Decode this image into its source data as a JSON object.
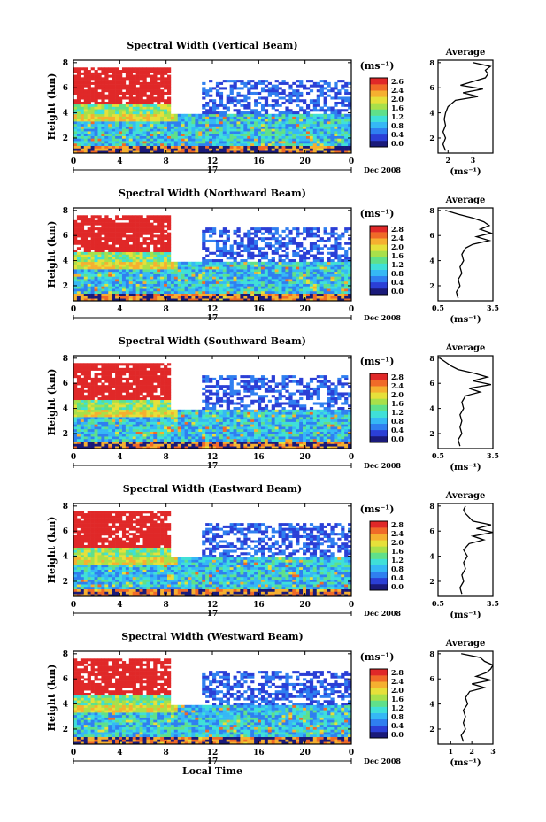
{
  "figure": {
    "date_label": "Dec 2008",
    "day_label": "17",
    "bottom_xlabel": "Local Time",
    "ylabel": "Height (km)",
    "unit_label": "(ms⁻¹)",
    "avg_title": "Average",
    "avg_unit": "(ms⁻¹)",
    "x_ticks": [
      "0",
      "4",
      "8",
      "12",
      "16",
      "20",
      "0"
    ],
    "y_ticks": [
      "2",
      "4",
      "6",
      "8"
    ]
  },
  "colors": {
    "colormap": [
      "#1a1a7a",
      "#2b3fd6",
      "#2f7ff0",
      "#35b8f5",
      "#3fe0d8",
      "#5fe08a",
      "#a8e04a",
      "#e6e03a",
      "#f5b030",
      "#f06a28",
      "#e02828"
    ],
    "background": "#ffffff"
  },
  "chart_data": [
    {
      "type": "heatmap",
      "title": "Spectral Width (Vertical Beam)",
      "xlabel": "",
      "ylabel": "Height (km)",
      "xlim": [
        0,
        24
      ],
      "ylim": [
        0.8,
        8.2
      ],
      "colorbar_ticks": [
        "2.6",
        "2.4",
        "2.0",
        "1.6",
        "1.2",
        "0.8",
        "0.4",
        "0.0"
      ],
      "average": {
        "xlim": [
          1.6,
          3.8
        ],
        "x_ticks": [
          "2",
          "3"
        ],
        "height": [
          1.0,
          1.5,
          2.0,
          2.5,
          3.0,
          3.5,
          4.0,
          4.5,
          5.0,
          5.3,
          5.6,
          5.9,
          6.2,
          6.5,
          6.8,
          7.1,
          7.4,
          7.7,
          8.0
        ],
        "value": [
          1.9,
          1.8,
          1.9,
          1.8,
          1.9,
          1.85,
          1.9,
          2.0,
          2.3,
          3.2,
          2.6,
          3.4,
          2.5,
          3.0,
          3.5,
          3.6,
          3.5,
          3.7,
          3.0
        ]
      }
    },
    {
      "type": "heatmap",
      "title": "Spectral Width (Northward Beam)",
      "xlabel": "",
      "ylabel": "Height (km)",
      "xlim": [
        0,
        24
      ],
      "ylim": [
        0.8,
        8.2
      ],
      "colorbar_ticks": [
        "2.8",
        "2.4",
        "2.0",
        "1.6",
        "1.2",
        "0.8",
        "0.4",
        "0.0"
      ],
      "average": {
        "xlim": [
          0.5,
          3.5
        ],
        "x_ticks": [
          "0.5",
          "3.5"
        ],
        "height": [
          1.0,
          1.5,
          2.0,
          2.5,
          3.0,
          3.5,
          4.0,
          4.5,
          5.0,
          5.3,
          5.6,
          5.9,
          6.2,
          6.5,
          6.8,
          7.1,
          7.4,
          7.7,
          8.0
        ],
        "value": [
          1.6,
          1.5,
          1.7,
          1.6,
          1.8,
          1.7,
          1.9,
          1.8,
          2.0,
          2.4,
          3.3,
          2.6,
          3.4,
          2.8,
          3.3,
          3.0,
          2.4,
          1.6,
          0.9
        ]
      }
    },
    {
      "type": "heatmap",
      "title": "Spectral Width (Southward Beam)",
      "xlabel": "",
      "ylabel": "Height (km)",
      "xlim": [
        0,
        24
      ],
      "ylim": [
        0.8,
        8.2
      ],
      "colorbar_ticks": [
        "2.8",
        "2.4",
        "2.0",
        "1.6",
        "1.2",
        "0.8",
        "0.4",
        "0.0"
      ],
      "average": {
        "xlim": [
          0.5,
          3.5
        ],
        "x_ticks": [
          "0.5",
          "3.5"
        ],
        "height": [
          1.0,
          1.5,
          2.0,
          2.5,
          3.0,
          3.5,
          4.0,
          4.5,
          5.0,
          5.3,
          5.6,
          5.9,
          6.2,
          6.5,
          6.8,
          7.1,
          7.4,
          7.7,
          8.0
        ],
        "value": [
          1.7,
          1.6,
          1.8,
          1.7,
          1.8,
          1.7,
          1.9,
          1.8,
          2.0,
          2.8,
          2.2,
          3.4,
          2.4,
          3.2,
          2.5,
          1.6,
          1.2,
          0.9,
          0.6
        ]
      }
    },
    {
      "type": "heatmap",
      "title": "Spectral Width (Eastward Beam)",
      "xlabel": "",
      "ylabel": "Height (km)",
      "xlim": [
        0,
        24
      ],
      "ylim": [
        0.8,
        8.2
      ],
      "colorbar_ticks": [
        "2.8",
        "2.4",
        "2.0",
        "1.6",
        "1.2",
        "0.8",
        "0.4",
        "0.0"
      ],
      "average": {
        "xlim": [
          0.5,
          3.5
        ],
        "x_ticks": [
          "0.5",
          "3.5"
        ],
        "height": [
          1.0,
          1.5,
          2.0,
          2.5,
          3.0,
          3.5,
          4.0,
          4.5,
          5.0,
          5.3,
          5.6,
          5.9,
          6.2,
          6.5,
          6.8,
          7.1,
          7.4,
          7.7,
          8.0
        ],
        "value": [
          1.8,
          1.7,
          1.9,
          1.8,
          2.0,
          1.9,
          2.1,
          1.9,
          2.2,
          3.0,
          2.4,
          3.5,
          2.6,
          3.4,
          2.4,
          2.2,
          2.0,
          1.9,
          2.0
        ]
      }
    },
    {
      "type": "heatmap",
      "title": "Spectral Width (Westward Beam)",
      "xlabel": "Local Time",
      "ylabel": "Height (km)",
      "xlim": [
        0,
        24
      ],
      "ylim": [
        0.8,
        8.2
      ],
      "colorbar_ticks": [
        "2.8",
        "2.4",
        "2.0",
        "1.6",
        "1.2",
        "0.8",
        "0.4",
        "0.0"
      ],
      "average": {
        "xlim": [
          0.4,
          3.0
        ],
        "x_ticks": [
          "1",
          "2",
          "3"
        ],
        "height": [
          1.0,
          1.5,
          2.0,
          2.5,
          3.0,
          3.5,
          4.0,
          4.5,
          5.0,
          5.3,
          5.6,
          5.9,
          6.2,
          6.5,
          6.8,
          7.1,
          7.4,
          7.7,
          8.0
        ],
        "value": [
          1.6,
          1.5,
          1.7,
          1.6,
          1.7,
          1.6,
          1.8,
          1.7,
          1.9,
          2.6,
          2.0,
          2.9,
          2.2,
          2.7,
          2.9,
          3.0,
          2.6,
          2.4,
          1.5
        ]
      }
    }
  ]
}
